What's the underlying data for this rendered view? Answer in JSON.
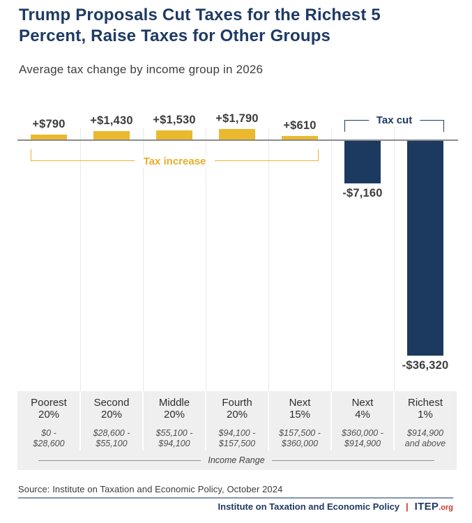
{
  "header": {
    "title": "Trump Proposals Cut Taxes for the Richest 5 Percent, Raise Taxes for Other Groups",
    "subtitle": "Average tax change by income group in 2026"
  },
  "chart_data": {
    "type": "bar",
    "title": "Trump Proposals Cut Taxes for the Richest 5 Percent, Raise Taxes for Other Groups",
    "subtitle": "Average tax change by income group in 2026",
    "categories": [
      "Poorest 20%",
      "Second 20%",
      "Middle 20%",
      "Fourth 20%",
      "Next 15%",
      "Next 4%",
      "Richest 1%"
    ],
    "category_lines": [
      [
        "Poorest",
        "20%"
      ],
      [
        "Second",
        "20%"
      ],
      [
        "Middle",
        "20%"
      ],
      [
        "Fourth",
        "20%"
      ],
      [
        "Next",
        "15%"
      ],
      [
        "Next",
        "4%"
      ],
      [
        "Richest",
        "1%"
      ]
    ],
    "income_ranges": [
      [
        "$0 -",
        "$28,600"
      ],
      [
        "$28,600 -",
        "$55,100"
      ],
      [
        "$55,100 -",
        "$94,100"
      ],
      [
        "$94,100 -",
        "$157,500"
      ],
      [
        "$157,500 -",
        "$360,000"
      ],
      [
        "$360,000 -",
        "$914,900"
      ],
      [
        "$914,900",
        "and above"
      ]
    ],
    "values": [
      790,
      1430,
      1530,
      1790,
      610,
      -7160,
      -36320
    ],
    "value_labels": [
      "+$790",
      "+$1,430",
      "+$1,530",
      "+$1,790",
      "+$610",
      "-$7,160",
      "-$36,320"
    ],
    "xlabel": "Income Range",
    "ylim": [
      -36320,
      1790
    ],
    "legend": "none",
    "grid": "vertical column separators",
    "annotations": {
      "tax_increase": {
        "label": "Tax increase",
        "categories": [
          "Poorest 20%",
          "Next 15%"
        ],
        "color": "#E8B331"
      },
      "tax_cut": {
        "label": "Tax cut",
        "categories": [
          "Next 4%",
          "Richest 1%"
        ],
        "color": "#1E3A64"
      }
    },
    "colors": {
      "positive_bar": "#EBB92E",
      "negative_bar": "#1C3A5F"
    }
  },
  "footer": {
    "source": "Source: Institute on Taxation and Economic Policy, October 2024",
    "org_name": "Institute on Taxation and Economic Policy",
    "separator": "|",
    "logo_main": "ITEP",
    "logo_suffix": ".org"
  }
}
